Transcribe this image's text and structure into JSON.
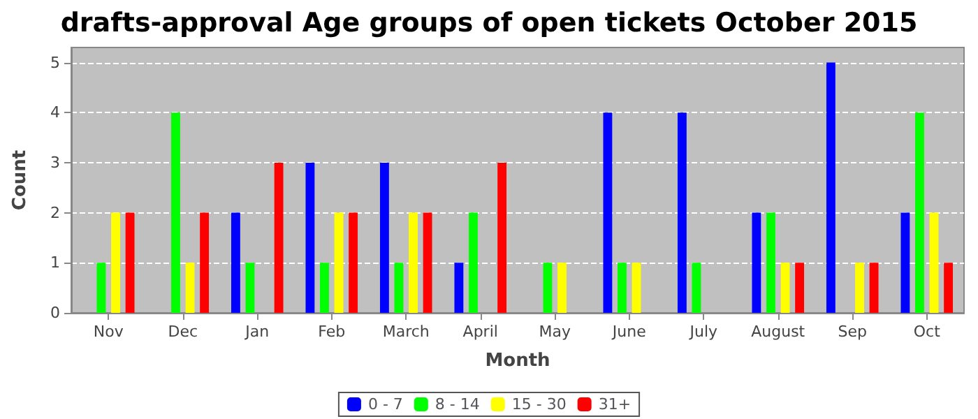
{
  "chart_data": {
    "type": "bar",
    "title": "drafts-approval Age groups of open tickets October 2015",
    "xlabel": "Month",
    "ylabel": "Count",
    "categories": [
      "Nov",
      "Dec",
      "Jan",
      "Feb",
      "March",
      "April",
      "May",
      "June",
      "July",
      "August",
      "Sep",
      "Oct"
    ],
    "series": [
      {
        "name": "0 - 7",
        "color": "#0000ff",
        "values": [
          0,
          0,
          2,
          3,
          3,
          1,
          0,
          4,
          4,
          2,
          5,
          2
        ]
      },
      {
        "name": "8 - 14",
        "color": "#00ff00",
        "values": [
          1,
          4,
          1,
          1,
          1,
          2,
          1,
          1,
          1,
          2,
          0,
          4
        ]
      },
      {
        "name": "15 - 30",
        "color": "#ffff00",
        "values": [
          2,
          1,
          0,
          2,
          2,
          0,
          1,
          1,
          0,
          1,
          1,
          2
        ]
      },
      {
        "name": "31+",
        "color": "#ff0000",
        "values": [
          2,
          2,
          3,
          2,
          2,
          3,
          0,
          0,
          0,
          1,
          1,
          1
        ]
      }
    ],
    "ylim": [
      0,
      5.3
    ],
    "yticks": [
      0,
      1,
      2,
      3,
      4,
      5
    ],
    "grid": "y",
    "legend": "bottom"
  }
}
